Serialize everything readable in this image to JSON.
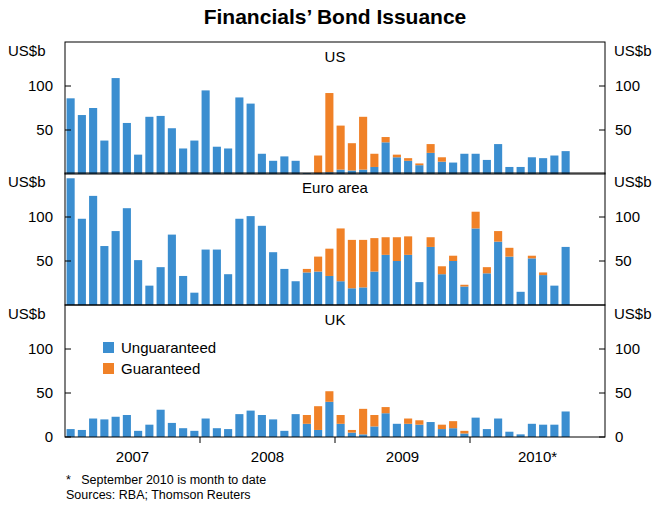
{
  "title": "Financials’ Bond Issuance",
  "notes": [
    "*   September 2010 is month to date",
    "Sources: RBA; Thomson Reuters"
  ],
  "chart_data": [
    {
      "type": "bar",
      "title": "US",
      "y_label": "US$b",
      "stacked": true,
      "tick_labels": "y",
      "categories": [
        null,
        null,
        null,
        null,
        null,
        null,
        null,
        null,
        null,
        null,
        null,
        null,
        null,
        null,
        null,
        null,
        null,
        null,
        null,
        null,
        null,
        null,
        null,
        null,
        null,
        null,
        null,
        null,
        null,
        null,
        null,
        null,
        null,
        null,
        null,
        null,
        null,
        null,
        null,
        null,
        null,
        null,
        null,
        null,
        null
      ],
      "series": [
        {
          "name": "Unguaranteed",
          "color": "#3b8ed0",
          "values": [
            86,
            67,
            75,
            38,
            109,
            58,
            22,
            65,
            66,
            52,
            29,
            38,
            95,
            31,
            29,
            87,
            80,
            23,
            15,
            20,
            15,
            1,
            1,
            2,
            5,
            4,
            5,
            8,
            36,
            19,
            15,
            10,
            24,
            14,
            13,
            23,
            23,
            16,
            34,
            8,
            8,
            19,
            18,
            21,
            26
          ]
        },
        {
          "name": "Guaranteed",
          "color": "#f08127",
          "values": [
            0,
            0,
            0,
            0,
            0,
            0,
            0,
            0,
            0,
            0,
            0,
            0,
            0,
            0,
            0,
            0,
            0,
            0,
            0,
            0,
            0,
            0,
            20,
            90,
            50,
            31,
            60,
            15,
            6,
            3,
            3,
            2,
            10,
            5,
            0,
            0,
            0,
            0,
            0,
            0,
            0,
            0,
            0,
            0,
            0
          ]
        }
      ],
      "ylim": [
        0,
        150
      ],
      "yticks": [
        50,
        100
      ]
    },
    {
      "type": "bar",
      "title": "Euro area",
      "y_label": "US$b",
      "stacked": true,
      "tick_labels": "y",
      "categories": [
        null,
        null,
        null,
        null,
        null,
        null,
        null,
        null,
        null,
        null,
        null,
        null,
        null,
        null,
        null,
        null,
        null,
        null,
        null,
        null,
        null,
        null,
        null,
        null,
        null,
        null,
        null,
        null,
        null,
        null,
        null,
        null,
        null,
        null,
        null,
        null,
        null,
        null,
        null,
        null,
        null,
        null,
        null,
        null,
        null
      ],
      "series": [
        {
          "name": "Unguaranteed",
          "color": "#3b8ed0",
          "values": [
            144,
            98,
            124,
            67,
            84,
            110,
            51,
            22,
            43,
            80,
            33,
            14,
            63,
            63,
            35,
            98,
            101,
            90,
            60,
            41,
            27,
            37,
            38,
            33,
            27,
            19,
            20,
            38,
            57,
            50,
            57,
            26,
            66,
            35,
            50,
            21,
            87,
            36,
            72,
            55,
            15,
            53,
            34,
            22,
            66
          ]
        },
        {
          "name": "Guaranteed",
          "color": "#f08127",
          "values": [
            0,
            0,
            0,
            0,
            0,
            0,
            0,
            0,
            0,
            0,
            0,
            0,
            0,
            0,
            0,
            0,
            0,
            0,
            0,
            0,
            0,
            4,
            17,
            31,
            60,
            55,
            54,
            38,
            20,
            27,
            21,
            0,
            11,
            9,
            6,
            2,
            19,
            7,
            12,
            10,
            0,
            3,
            3,
            0,
            0
          ]
        }
      ],
      "ylim": [
        0,
        150
      ],
      "yticks": [
        50,
        100
      ]
    },
    {
      "type": "bar",
      "title": "UK",
      "y_label": "US$b",
      "stacked": true,
      "legend": "upper left",
      "categories": [
        null,
        null,
        null,
        null,
        null,
        "2007",
        null,
        null,
        null,
        null,
        null,
        null,
        null,
        null,
        null,
        null,
        null,
        "2008",
        null,
        null,
        null,
        null,
        null,
        null,
        null,
        null,
        null,
        null,
        null,
        "2009",
        null,
        null,
        null,
        null,
        null,
        null,
        null,
        null,
        null,
        null,
        null,
        "2010*",
        null,
        null,
        null
      ],
      "series": [
        {
          "name": "Unguaranteed",
          "color": "#3b8ed0",
          "values": [
            9,
            8,
            21,
            20,
            23,
            25,
            7,
            14,
            31,
            16,
            10,
            7,
            21,
            10,
            9,
            26,
            30,
            25,
            20,
            7,
            26,
            15,
            8,
            40,
            15,
            5,
            3,
            12,
            27,
            15,
            15,
            14,
            17,
            9,
            10,
            4,
            22,
            9,
            21,
            6,
            3,
            15,
            14,
            14,
            29
          ]
        },
        {
          "name": "Guaranteed",
          "color": "#f08127",
          "values": [
            0,
            0,
            0,
            0,
            0,
            0,
            0,
            0,
            0,
            0,
            0,
            0,
            0,
            0,
            0,
            0,
            0,
            0,
            0,
            0,
            0,
            10,
            27,
            12,
            10,
            3,
            29,
            13,
            7,
            0,
            6,
            5,
            0,
            5,
            8,
            3,
            0,
            0,
            0,
            0,
            0,
            0,
            0,
            0,
            0
          ]
        }
      ],
      "ylim": [
        0,
        150
      ],
      "yticks": [
        0,
        50,
        100
      ]
    }
  ]
}
